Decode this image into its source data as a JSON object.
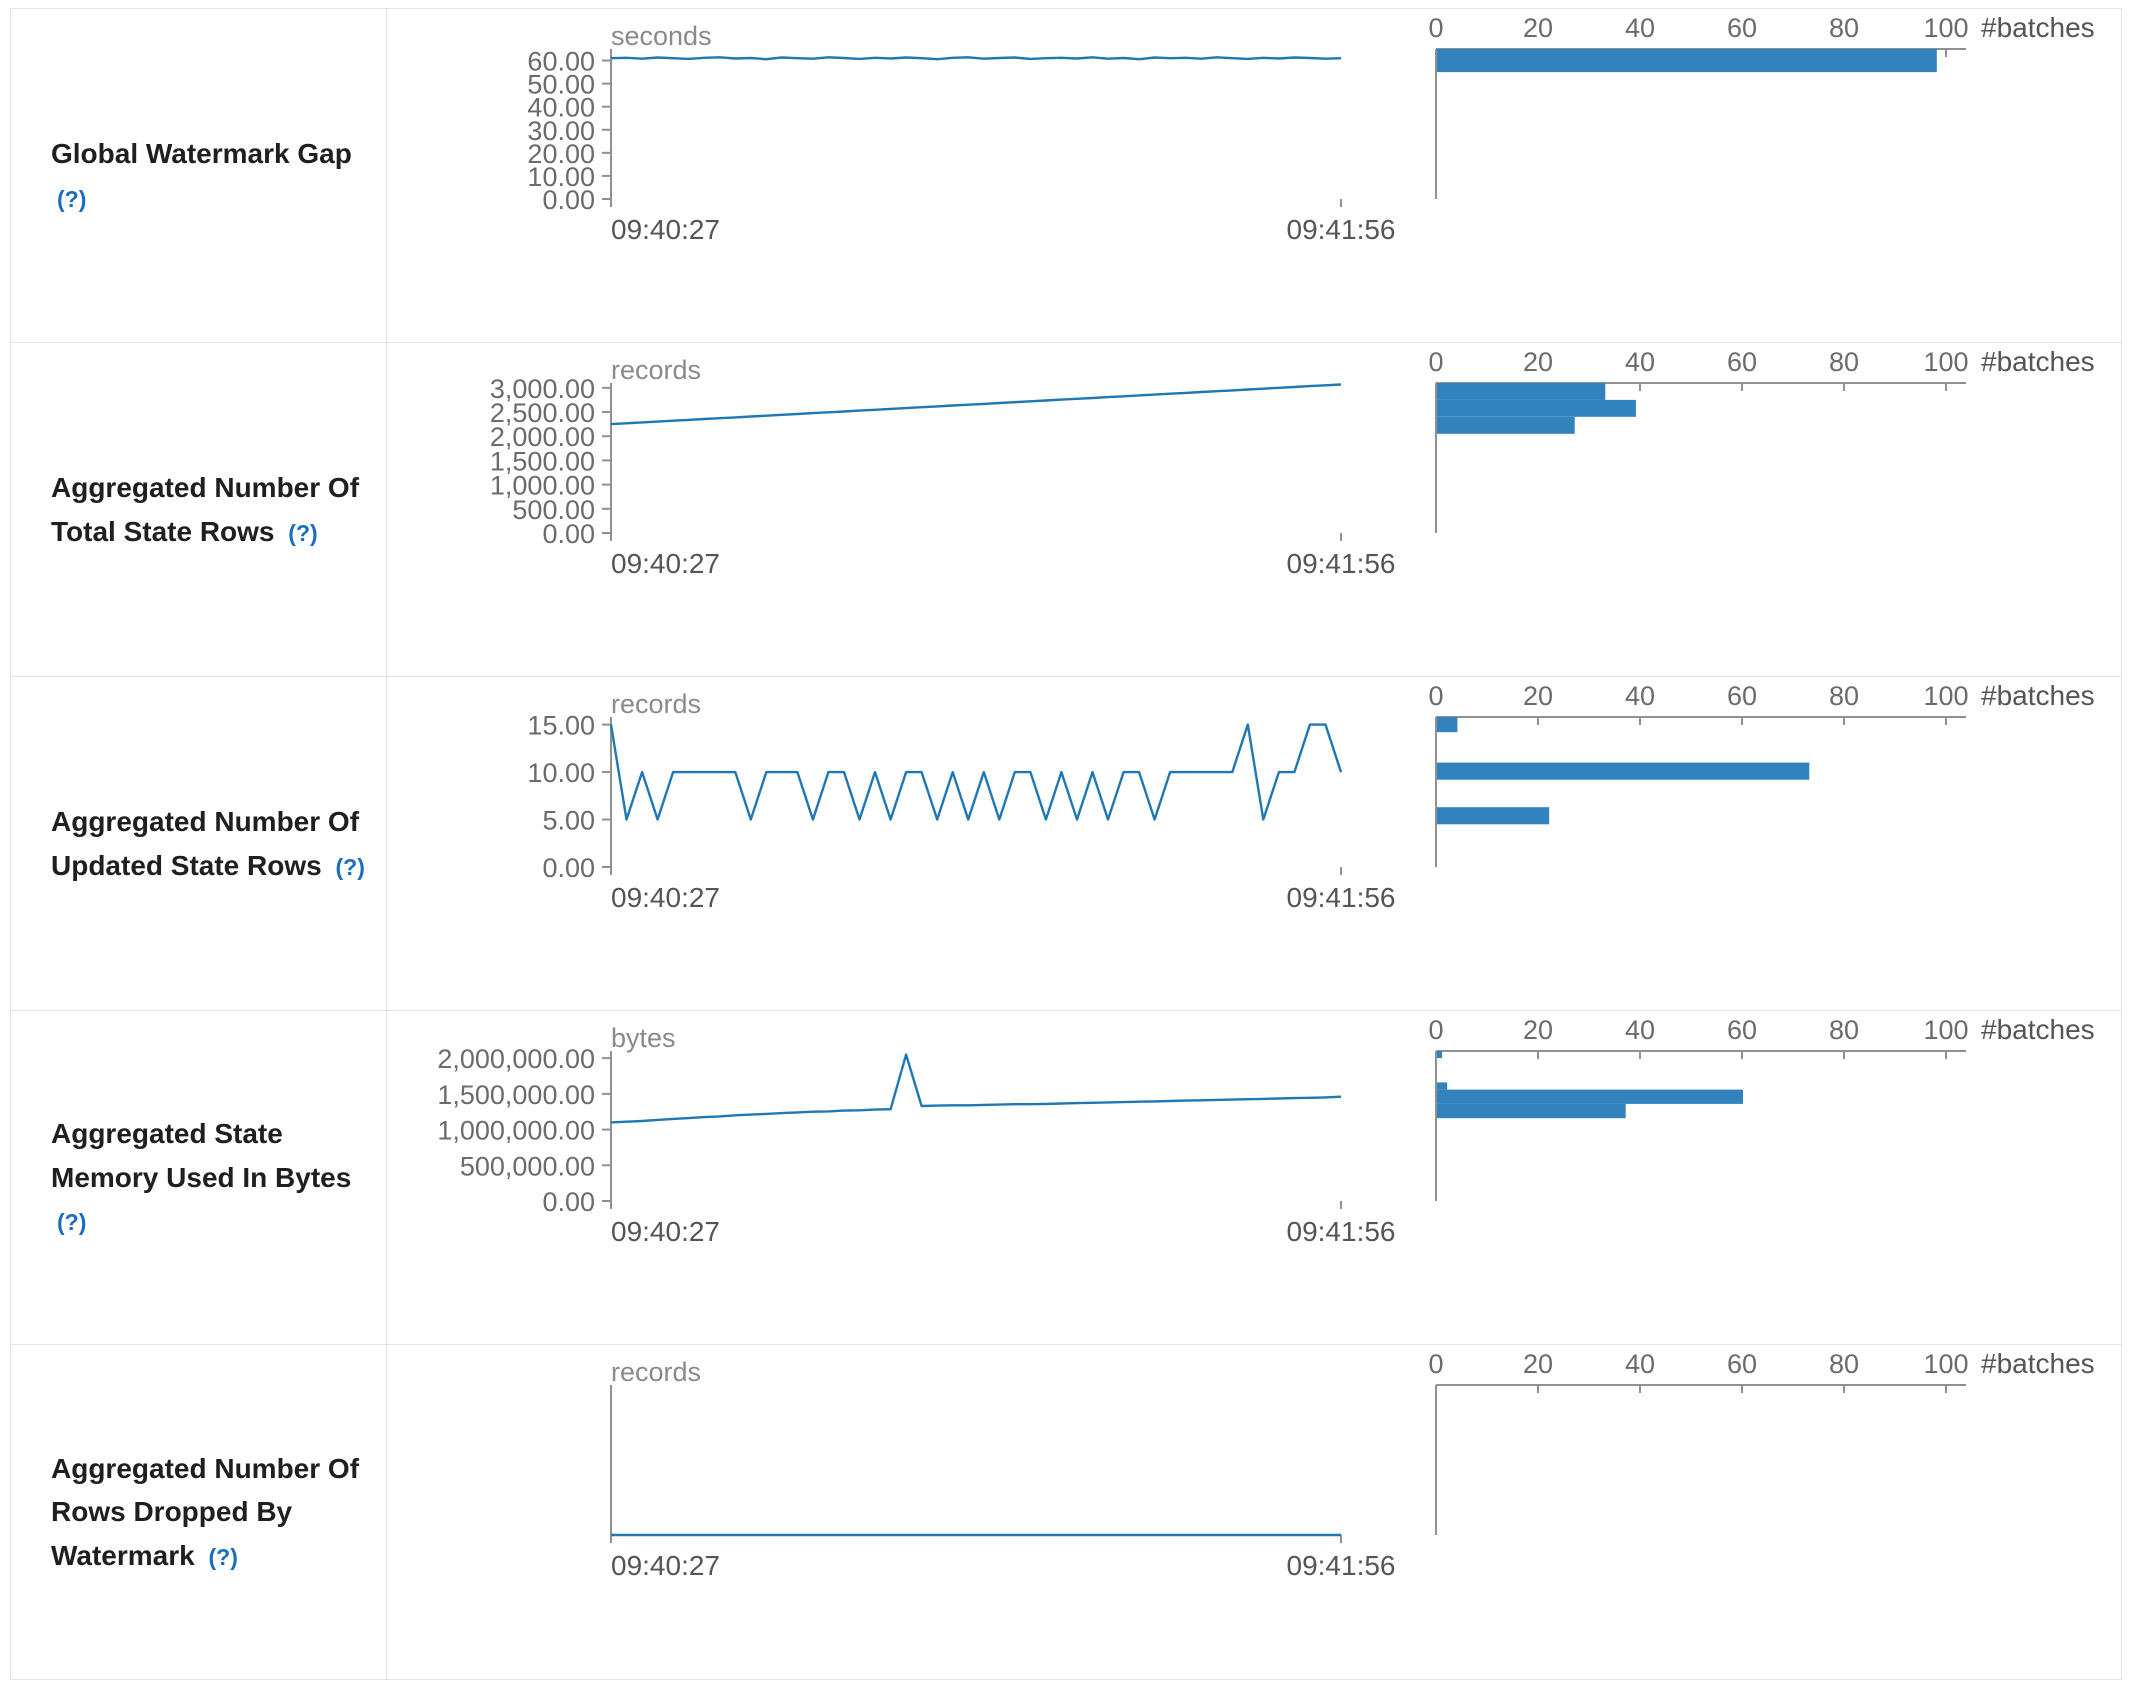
{
  "colors": {
    "line": "#1f77b4",
    "bar": "#3182bd",
    "axis": "#919191",
    "tick_text": "#6b6b6b",
    "label_text": "#1f1f1f",
    "help_link": "#1c6dc1",
    "border": "#e3e3e3"
  },
  "rows": [
    {
      "label": "Global Watermark Gap",
      "help": "(?)"
    },
    {
      "label": "Aggregated Number Of Total State Rows",
      "help": "(?)"
    },
    {
      "label": "Aggregated Number Of Updated State Rows",
      "help": "(?)"
    },
    {
      "label": "Aggregated State Memory Used In Bytes",
      "help": "(?)"
    },
    {
      "label": "Aggregated Number Of Rows Dropped By Watermark",
      "help": "(?)"
    }
  ],
  "chart_data": [
    {
      "name": "Global Watermark Gap",
      "timeline": {
        "type": "line",
        "unit": "seconds",
        "x_ticks": [
          "09:40:27",
          "09:41:56"
        ],
        "ymax": 65,
        "y_ticks": [
          {
            "value": 60,
            "label": "60.00"
          },
          {
            "value": 50,
            "label": "50.00"
          },
          {
            "value": 40,
            "label": "40.00"
          },
          {
            "value": 30,
            "label": "30.00"
          },
          {
            "value": 20,
            "label": "20.00"
          },
          {
            "value": 10,
            "label": "10.00"
          },
          {
            "value": 0,
            "label": "0.00"
          }
        ],
        "values": [
          61.0,
          61.2,
          60.8,
          61.3,
          61.0,
          60.7,
          61.2,
          61.4,
          60.9,
          61.1,
          60.6,
          61.3,
          61.0,
          60.8,
          61.4,
          61.1,
          60.7,
          61.2,
          60.9,
          61.3,
          61.0,
          60.6,
          61.2,
          61.4,
          60.8,
          61.1,
          61.3,
          60.7,
          61.0,
          61.2,
          60.9,
          61.4,
          60.8,
          61.1,
          60.6,
          61.3,
          61.0,
          61.2,
          60.8,
          61.4,
          61.0,
          60.7,
          61.2,
          60.9,
          61.3,
          61.1,
          60.8,
          61.0
        ]
      },
      "histogram": {
        "type": "bar",
        "xlabel": "#batches",
        "xmax": 100,
        "x_ticks": [
          0,
          20,
          40,
          60,
          80,
          100
        ],
        "bars": [
          {
            "from": 55,
            "to": 65,
            "count": 98
          }
        ]
      }
    },
    {
      "name": "Aggregated Number Of Total State Rows",
      "timeline": {
        "type": "line",
        "unit": "records",
        "x_ticks": [
          "09:40:27",
          "09:41:56"
        ],
        "ymax": 3100,
        "y_ticks": [
          {
            "value": 3000,
            "label": "3,000.00"
          },
          {
            "value": 2500,
            "label": "2,500.00"
          },
          {
            "value": 2000,
            "label": "2,000.00"
          },
          {
            "value": 1500,
            "label": "1,500.00"
          },
          {
            "value": 1000,
            "label": "1,000.00"
          },
          {
            "value": 500,
            "label": "500.00"
          },
          {
            "value": 0,
            "label": "0.00"
          }
        ],
        "values": [
          2250,
          2268,
          2285,
          2303,
          2320,
          2338,
          2355,
          2372,
          2390,
          2407,
          2425,
          2442,
          2460,
          2477,
          2494,
          2512,
          2529,
          2547,
          2564,
          2582,
          2599,
          2616,
          2634,
          2651,
          2669,
          2686,
          2704,
          2721,
          2738,
          2756,
          2773,
          2791,
          2808,
          2826,
          2843,
          2860,
          2878,
          2895,
          2913,
          2930,
          2948,
          2965,
          2982,
          3000,
          3017,
          3035,
          3052,
          3070
        ]
      },
      "histogram": {
        "type": "bar",
        "xlabel": "#batches",
        "xmax": 100,
        "x_ticks": [
          0,
          20,
          40,
          60,
          80,
          100
        ],
        "bars": [
          {
            "from": 2750,
            "to": 3100,
            "count": 33
          },
          {
            "from": 2400,
            "to": 2750,
            "count": 39
          },
          {
            "from": 2050,
            "to": 2400,
            "count": 27
          }
        ]
      }
    },
    {
      "name": "Aggregated Number Of Updated State Rows",
      "timeline": {
        "type": "line",
        "unit": "records",
        "x_ticks": [
          "09:40:27",
          "09:41:56"
        ],
        "ymax": 15.8,
        "y_ticks": [
          {
            "value": 15,
            "label": "15.00"
          },
          {
            "value": 10,
            "label": "10.00"
          },
          {
            "value": 5,
            "label": "5.00"
          },
          {
            "value": 0,
            "label": "0.00"
          }
        ],
        "values": [
          15,
          5,
          10,
          5,
          10,
          10,
          10,
          10,
          10,
          5,
          10,
          10,
          10,
          5,
          10,
          10,
          5,
          10,
          5,
          10,
          10,
          5,
          10,
          5,
          10,
          5,
          10,
          10,
          5,
          10,
          5,
          10,
          5,
          10,
          10,
          5,
          10,
          10,
          10,
          10,
          10,
          15,
          5,
          10,
          10,
          15,
          15,
          10
        ]
      },
      "histogram": {
        "type": "bar",
        "xlabel": "#batches",
        "xmax": 100,
        "x_ticks": [
          0,
          20,
          40,
          60,
          80,
          100
        ],
        "bars": [
          {
            "from": 14.2,
            "to": 15.8,
            "count": 4
          },
          {
            "from": 9.2,
            "to": 11.0,
            "count": 73
          },
          {
            "from": 4.5,
            "to": 6.3,
            "count": 22
          }
        ]
      }
    },
    {
      "name": "Aggregated State Memory Used In Bytes",
      "timeline": {
        "type": "line",
        "unit": "bytes",
        "x_ticks": [
          "09:40:27",
          "09:41:56"
        ],
        "ymax": 2100000,
        "y_ticks": [
          {
            "value": 2000000,
            "label": "2,000,000.00"
          },
          {
            "value": 1500000,
            "label": "1,500,000.00"
          },
          {
            "value": 1000000,
            "label": "1,000,000.00"
          },
          {
            "value": 500000,
            "label": "500,000.00"
          },
          {
            "value": 0,
            "label": "0.00"
          }
        ],
        "values": [
          1100000,
          1110000,
          1120000,
          1135000,
          1150000,
          1160000,
          1175000,
          1185000,
          1200000,
          1210000,
          1220000,
          1230000,
          1240000,
          1250000,
          1255000,
          1265000,
          1270000,
          1280000,
          1285000,
          2050000,
          1330000,
          1335000,
          1340000,
          1340000,
          1345000,
          1350000,
          1355000,
          1355000,
          1360000,
          1365000,
          1370000,
          1375000,
          1380000,
          1385000,
          1390000,
          1395000,
          1400000,
          1405000,
          1410000,
          1415000,
          1420000,
          1425000,
          1430000,
          1435000,
          1440000,
          1445000,
          1450000,
          1460000
        ]
      },
      "histogram": {
        "type": "bar",
        "xlabel": "#batches",
        "xmax": 100,
        "x_ticks": [
          0,
          20,
          40,
          60,
          80,
          100
        ],
        "bars": [
          {
            "from": 2000000,
            "to": 2100000,
            "count": 1
          },
          {
            "from": 1560000,
            "to": 1660000,
            "count": 2
          },
          {
            "from": 1360000,
            "to": 1560000,
            "count": 60
          },
          {
            "from": 1160000,
            "to": 1360000,
            "count": 37
          }
        ]
      }
    },
    {
      "name": "Aggregated Number Of Rows Dropped By Watermark",
      "timeline": {
        "type": "line",
        "unit": "records",
        "x_ticks": [
          "09:40:27",
          "09:41:56"
        ],
        "ymax": 1,
        "y_ticks": [],
        "values": [
          0,
          0
        ]
      },
      "histogram": {
        "type": "bar",
        "xlabel": "#batches",
        "xmax": 100,
        "x_ticks": [
          0,
          20,
          40,
          60,
          80,
          100
        ],
        "bars": []
      }
    }
  ]
}
